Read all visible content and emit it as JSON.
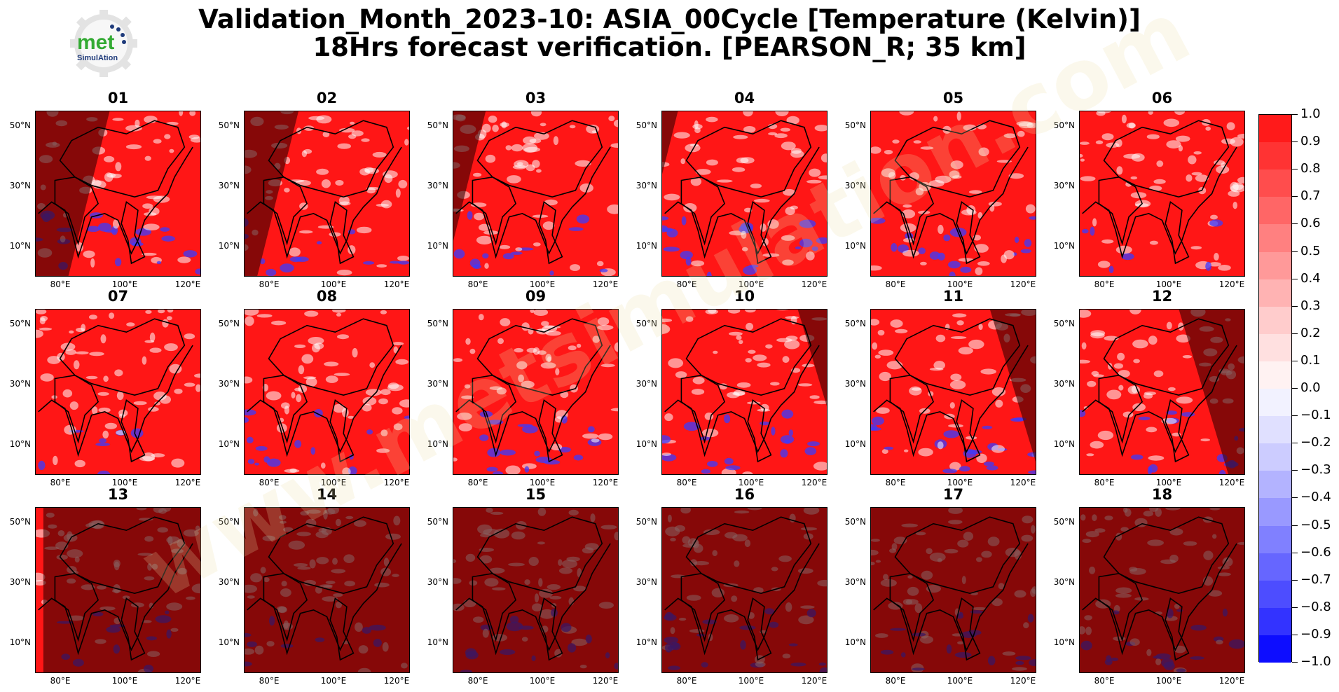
{
  "header": {
    "title_line1": "Validation_Month_2023-10: ASIA_00Cycle [Temperature (Kelvin)]",
    "title_line2": "18Hrs forecast verification.  [PEARSON_R; 35 km]"
  },
  "logo": {
    "text": "met",
    "subtext": "SimulAtion",
    "icon": "gear-logo-icon"
  },
  "watermark": "www.metsimulation.com",
  "chart_data": {
    "type": "heatmap",
    "metric": "PEARSON_R",
    "panels": [
      "01",
      "02",
      "03",
      "04",
      "05",
      "06",
      "07",
      "08",
      "09",
      "10",
      "11",
      "12",
      "13",
      "14",
      "15",
      "16",
      "17",
      "18"
    ],
    "shade_start_fraction": [
      0.45,
      0.33,
      0.2,
      0.1,
      1.1,
      1.1,
      1.1,
      1.1,
      1.1,
      0.82,
      0.72,
      0.6,
      0.05,
      0.0,
      0.0,
      0.0,
      0.0,
      0.0
    ],
    "y_ticks": [
      "50°N",
      "30°N",
      "10°N"
    ],
    "x_ticks": [
      "80°E",
      "100°E",
      "120°E"
    ],
    "colorbar": {
      "min": -1.0,
      "max": 1.0,
      "ticks": [
        "1.0",
        "0.9",
        "0.8",
        "0.7",
        "0.6",
        "0.5",
        "0.4",
        "0.3",
        "0.2",
        "0.1",
        "0.0",
        "−0.1",
        "−0.2",
        "−0.3",
        "−0.4",
        "−0.5",
        "−0.6",
        "−0.7",
        "−0.8",
        "−0.9",
        "−1.0"
      ],
      "colors": [
        "#ff1a1a",
        "#ff3333",
        "#ff4d4d",
        "#ff6666",
        "#ff8080",
        "#ff9999",
        "#ffb3b3",
        "#ffcccc",
        "#ffe0e0",
        "#fff2f2",
        "#f2f2ff",
        "#e0e0ff",
        "#ccccff",
        "#b3b3ff",
        "#9999ff",
        "#8080ff",
        "#6666ff",
        "#4d4dff",
        "#3333ff",
        "#0d0dff"
      ]
    }
  }
}
